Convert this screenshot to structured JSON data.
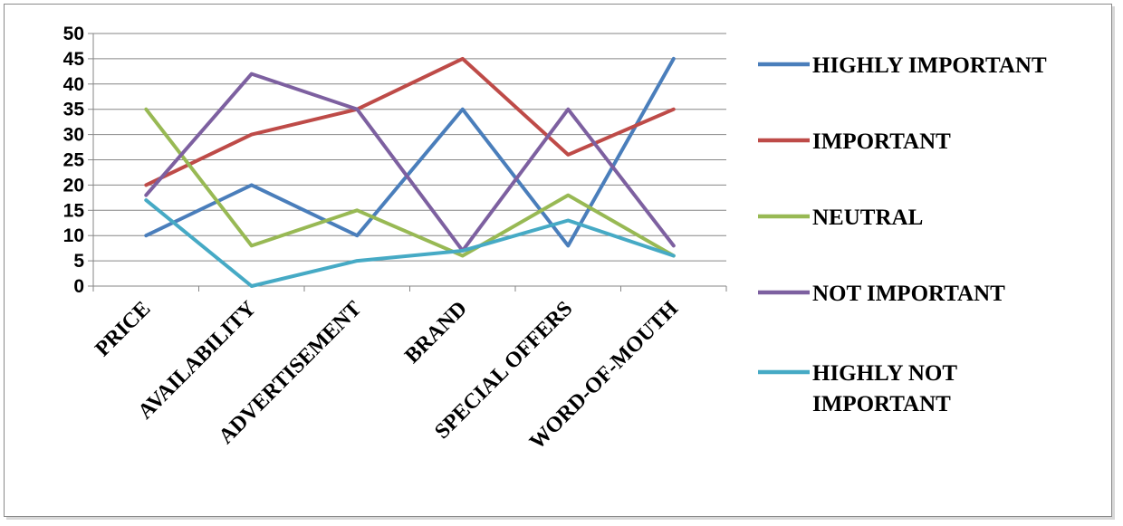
{
  "chart_data": {
    "type": "line",
    "title": "",
    "xlabel": "",
    "ylabel": "",
    "categories": [
      "PRICE",
      "AVAILABILITY",
      "ADVERTISEMENT",
      "BRAND",
      "SPECIAL OFFERS",
      "WORD-OF-MOUTH"
    ],
    "ylim": [
      0,
      50
    ],
    "yticks": [
      "0",
      "5",
      "10",
      "15",
      "20",
      "25",
      "30",
      "35",
      "40",
      "45",
      "50"
    ],
    "grid": true,
    "legend_position": "right",
    "series": [
      {
        "name": "HIGHLY IMPORTANT",
        "legend_lines": [
          "HIGHLY IMPORTANT"
        ],
        "color": "#4a7ebb",
        "values": [
          10,
          20,
          10,
          35,
          8,
          45
        ]
      },
      {
        "name": "IMPORTANT",
        "legend_lines": [
          "IMPORTANT"
        ],
        "color": "#be4b48",
        "values": [
          20,
          30,
          35,
          45,
          26,
          35
        ]
      },
      {
        "name": "NEUTRAL",
        "legend_lines": [
          "NEUTRAL"
        ],
        "color": "#98b954",
        "values": [
          35,
          8,
          15,
          6,
          18,
          6
        ]
      },
      {
        "name": "NOT IMPORTANT",
        "legend_lines": [
          "NOT IMPORTANT"
        ],
        "color": "#7d60a0",
        "values": [
          18,
          42,
          35,
          7,
          35,
          8
        ]
      },
      {
        "name": "HIGHLY NOT IMPORTANT",
        "legend_lines": [
          "HIGHLY NOT",
          "IMPORTANT"
        ],
        "color": "#46aac5",
        "values": [
          17,
          0,
          5,
          7,
          13,
          6
        ]
      }
    ]
  }
}
